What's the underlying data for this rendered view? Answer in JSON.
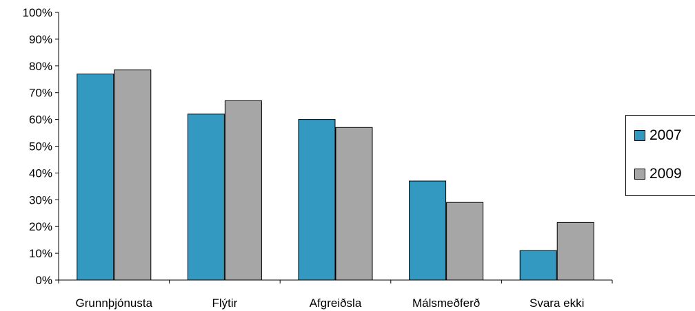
{
  "colors": {
    "s2007": "#3399C0",
    "s2009": "#A6A6A6",
    "axis": "#000000"
  },
  "chart_data": {
    "type": "bar",
    "categories": [
      "Grunnþjónusta",
      "Flýtir",
      "Afgreiðsla",
      "Málsmeðferð",
      "Svara ekki"
    ],
    "series": [
      {
        "name": "2007",
        "values": [
          77,
          62,
          60,
          37,
          11
        ]
      },
      {
        "name": "2009",
        "values": [
          78.5,
          67,
          57,
          29,
          21.5
        ]
      }
    ],
    "ylim": [
      0,
      100
    ],
    "yticks": [
      "0%",
      "10%",
      "20%",
      "30%",
      "40%",
      "50%",
      "60%",
      "70%",
      "80%",
      "90%",
      "100%"
    ],
    "legend_position": "right",
    "grid": false
  }
}
